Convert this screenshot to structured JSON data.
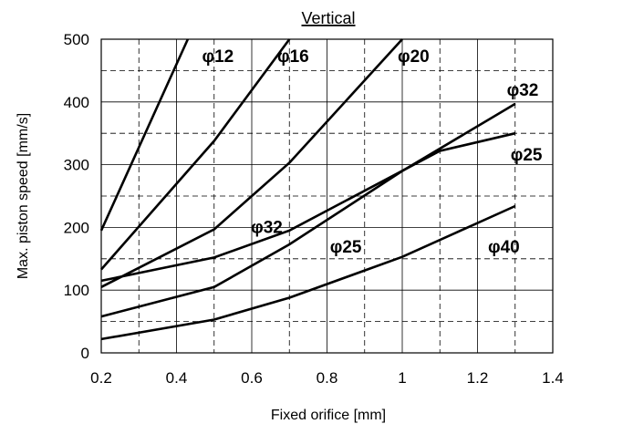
{
  "chart_data": {
    "type": "line",
    "title": "Vertical",
    "xlabel": "Fixed orifice [mm]",
    "ylabel": "Max. piston speed [mm/s]",
    "xlim": [
      0.2,
      1.4
    ],
    "ylim": [
      0,
      500
    ],
    "x_ticks": [
      "0.2",
      "0.4",
      "0.6",
      "0.8",
      "1",
      "1.2",
      "1.4"
    ],
    "y_ticks": [
      "0",
      "100",
      "200",
      "300",
      "400",
      "500"
    ],
    "grid": {
      "major": "solid",
      "minor": "dashed"
    },
    "series": [
      {
        "name": "φ12",
        "x": [
          0.2,
          0.43
        ],
        "y": [
          195,
          500
        ]
      },
      {
        "name": "φ16",
        "x": [
          0.2,
          0.5,
          0.7
        ],
        "y": [
          133,
          338,
          500
        ]
      },
      {
        "name": "φ20",
        "x": [
          0.2,
          0.5,
          0.7,
          1.0
        ],
        "y": [
          105,
          197,
          303,
          500
        ]
      },
      {
        "name": "φ32",
        "x": [
          0.2,
          0.5,
          0.7,
          1.1,
          1.3
        ],
        "y": [
          115,
          152,
          195,
          322,
          350
        ]
      },
      {
        "name": "φ25",
        "x": [
          0.2,
          0.5,
          0.7,
          1.0,
          1.3
        ],
        "y": [
          58,
          105,
          173,
          290,
          397
        ]
      },
      {
        "name": "φ40",
        "x": [
          0.2,
          0.5,
          0.7,
          1.0,
          1.3
        ],
        "y": [
          22,
          53,
          88,
          153,
          234
        ]
      }
    ],
    "labels": [
      {
        "text": "φ12",
        "x": 0.51,
        "y": 474
      },
      {
        "text": "φ16",
        "x": 0.71,
        "y": 474
      },
      {
        "text": "φ20",
        "x": 1.03,
        "y": 474
      },
      {
        "text": "φ32",
        "x": 1.32,
        "y": 420
      },
      {
        "text": "φ25",
        "x": 1.33,
        "y": 317
      },
      {
        "text": "φ32",
        "x": 0.64,
        "y": 201
      },
      {
        "text": "φ25",
        "x": 0.85,
        "y": 170
      },
      {
        "text": "φ40",
        "x": 1.27,
        "y": 170
      }
    ]
  }
}
